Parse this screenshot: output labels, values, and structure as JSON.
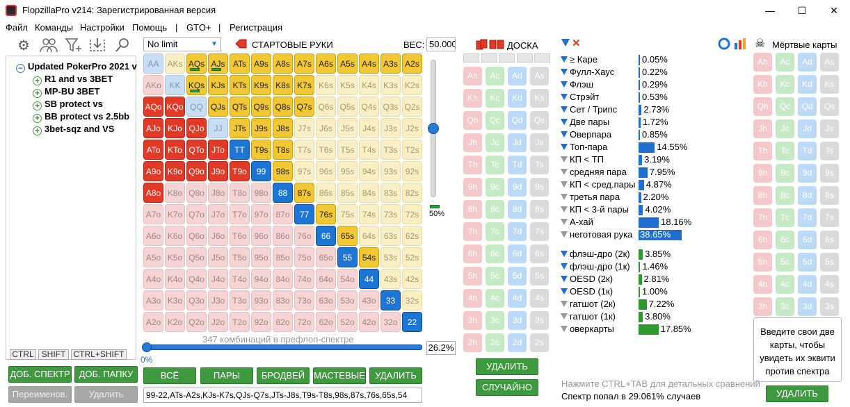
{
  "window": {
    "title": "FlopzillaPro v214: Зарегистрированная версия",
    "minimize": "—",
    "maximize": "☐",
    "close": "✕"
  },
  "menu": [
    "Файл",
    "Команды",
    "Настройки",
    "Помощь",
    "|",
    "GTO+",
    "|",
    "Регистрация"
  ],
  "tree": {
    "root": "Updated PokerPro 2021 v",
    "items": [
      "R1 and vs 3BET",
      "MP-BU 3BET",
      "SB protect vs",
      "BB protect vs 2.5bb",
      "3bet-sqz and VS"
    ]
  },
  "keys": [
    "CTRL",
    "SHIFT",
    "CTRL+SHIFT"
  ],
  "left_buttons": [
    "ДОБ. СПЕКТР",
    "ДОБ. ПАПКУ",
    "Переименов.",
    "Удалить"
  ],
  "grid_header": {
    "limit": "No limit",
    "starting_hands": "СТАРТОВЫЕ РУКИ",
    "weight_label": "ВЕС:",
    "weight_value": "50.000"
  },
  "slider": {
    "value_label": "50%",
    "value": 0.5
  },
  "combos": {
    "text": "347 комбинаций в префлоп-спектре",
    "percent": "26.2%",
    "zero": "0%"
  },
  "range_buttons": [
    "ВСЁ",
    "ПАРЫ",
    "БРОДВЕЙ",
    "МАСТЕВЫЕ",
    "УДАЛИТЬ"
  ],
  "range_text": "99-22,ATs-A2s,KJs-K7s,QJs-Q7s,JTs-J8s,T9s-T8s,98s,87s,76s,65s,54",
  "grid_rows": [
    [
      "AA",
      "AKs",
      "AQs",
      "AJs",
      "ATs",
      "A9s",
      "A8s",
      "A7s",
      "A6s",
      "A5s",
      "A4s",
      "A3s",
      "A2s"
    ],
    [
      "AKo",
      "KK",
      "KQs",
      "KJs",
      "KTs",
      "K9s",
      "K8s",
      "K7s",
      "K6s",
      "K5s",
      "K4s",
      "K3s",
      "K2s"
    ],
    [
      "AQo",
      "KQo",
      "QQ",
      "QJs",
      "QTs",
      "Q9s",
      "Q8s",
      "Q7s",
      "Q6s",
      "Q5s",
      "Q4s",
      "Q3s",
      "Q2s"
    ],
    [
      "AJo",
      "KJo",
      "QJo",
      "JJ",
      "JTs",
      "J9s",
      "J8s",
      "J7s",
      "J6s",
      "J5s",
      "J4s",
      "J3s",
      "J2s"
    ],
    [
      "ATo",
      "KTo",
      "QTo",
      "JTo",
      "TT",
      "T9s",
      "T8s",
      "T7s",
      "T6s",
      "T5s",
      "T4s",
      "T3s",
      "T2s"
    ],
    [
      "A9o",
      "K9o",
      "Q9o",
      "J9o",
      "T9o",
      "99",
      "98s",
      "97s",
      "96s",
      "95s",
      "94s",
      "93s",
      "92s"
    ],
    [
      "A8o",
      "K8o",
      "Q8o",
      "J8o",
      "T8o",
      "98o",
      "88",
      "87s",
      "86s",
      "85s",
      "84s",
      "83s",
      "82s"
    ],
    [
      "A7o",
      "K7o",
      "Q7o",
      "J7o",
      "T7o",
      "97o",
      "87o",
      "77",
      "76s",
      "75s",
      "74s",
      "73s",
      "72s"
    ],
    [
      "A6o",
      "K6o",
      "Q6o",
      "J6o",
      "T6o",
      "96o",
      "86o",
      "76o",
      "66",
      "65s",
      "64s",
      "63s",
      "62s"
    ],
    [
      "A5o",
      "K5o",
      "Q5o",
      "J5o",
      "T5o",
      "95o",
      "85o",
      "75o",
      "65o",
      "55",
      "54s",
      "53s",
      "52s"
    ],
    [
      "A4o",
      "K4o",
      "Q4o",
      "J4o",
      "T4o",
      "94o",
      "84o",
      "74o",
      "64o",
      "54o",
      "44",
      "43s",
      "42s"
    ],
    [
      "A3o",
      "K3o",
      "Q3o",
      "J3o",
      "T3o",
      "93o",
      "83o",
      "73o",
      "63o",
      "53o",
      "43o",
      "33",
      "32s"
    ],
    [
      "A2o",
      "K2o",
      "Q2o",
      "J2o",
      "T2o",
      "92o",
      "82o",
      "72o",
      "62o",
      "52o",
      "42o",
      "32o",
      "22"
    ]
  ],
  "selected_hands": [
    "AQs",
    "AJs",
    "ATs",
    "A9s",
    "A8s",
    "A7s",
    "A6s",
    "A5s",
    "A4s",
    "A3s",
    "A2s",
    "KQs",
    "KJs",
    "KTs",
    "K9s",
    "K8s",
    "K7s",
    "QJs",
    "QTs",
    "Q9s",
    "Q8s",
    "Q7s",
    "JTs",
    "J9s",
    "J8s",
    "T9s",
    "T8s",
    "98s",
    "87s",
    "76s",
    "65s",
    "54s",
    "AQo",
    "KQo",
    "AJo",
    "KJo",
    "QJo",
    "ATo",
    "KTo",
    "QTo",
    "JTo",
    "A9o",
    "K9o",
    "Q9o",
    "J9o",
    "T9o",
    "A8o",
    "TT",
    "99",
    "88",
    "77",
    "66",
    "55",
    "44",
    "33",
    "22"
  ],
  "partial_hands": [
    "AQs",
    "AJs",
    "KQs"
  ],
  "board": {
    "label": "ДОСКА",
    "delete": "УДАЛИТЬ",
    "random": "СЛУЧАЙНО",
    "ranks": [
      "A",
      "K",
      "Q",
      "J",
      "T",
      "9",
      "8",
      "7",
      "6",
      "5",
      "4",
      "3",
      "2"
    ],
    "suits": [
      "h",
      "c",
      "d",
      "s"
    ]
  },
  "dead": {
    "label": "Мёртвые карты",
    "delete": "УДАЛИТЬ",
    "hint": "Введите свои две карты, чтобы увидеть их эквити против спектра"
  },
  "stats": [
    {
      "label": "≥ Каре",
      "value": "0.05%",
      "pct": 0.05,
      "active": true,
      "group": 1
    },
    {
      "label": "Фулл-Хаус",
      "value": "0.22%",
      "pct": 0.22,
      "active": true,
      "group": 1
    },
    {
      "label": "Флэш",
      "value": "0.29%",
      "pct": 0.29,
      "active": true,
      "group": 1
    },
    {
      "label": "Стрэйт",
      "value": "0.53%",
      "pct": 0.53,
      "active": true,
      "group": 1
    },
    {
      "label": "Сет / Трипс",
      "value": "2.73%",
      "pct": 2.73,
      "active": true,
      "group": 1
    },
    {
      "label": "Две пары",
      "value": "1.72%",
      "pct": 1.72,
      "active": true,
      "group": 1
    },
    {
      "label": "Оверпара",
      "value": "0.85%",
      "pct": 0.85,
      "active": true,
      "group": 1
    },
    {
      "label": "Топ-пара",
      "value": "14.55%",
      "pct": 14.55,
      "active": true,
      "group": 1
    },
    {
      "label": "КП < ТП",
      "value": "3.19%",
      "pct": 3.19,
      "active": false,
      "group": 1
    },
    {
      "label": "средняя пара",
      "value": "7.95%",
      "pct": 7.95,
      "active": false,
      "group": 1
    },
    {
      "label": "КП < сред.пары",
      "value": "4.87%",
      "pct": 4.87,
      "active": false,
      "group": 1
    },
    {
      "label": "третья пара",
      "value": "2.20%",
      "pct": 2.2,
      "active": false,
      "group": 1
    },
    {
      "label": "КП < 3-й пары",
      "value": "4.02%",
      "pct": 4.02,
      "active": false,
      "group": 1
    },
    {
      "label": "А-хай",
      "value": "18.16%",
      "pct": 18.16,
      "active": false,
      "group": 1
    },
    {
      "label": "неготовая рука",
      "value": "38.65%",
      "pct": 38.65,
      "active": false,
      "group": 1
    },
    {
      "label": "флэш-дро (2к)",
      "value": "3.85%",
      "pct": 3.85,
      "active": true,
      "group": 2
    },
    {
      "label": "флэш-дро (1к)",
      "value": "1.46%",
      "pct": 1.46,
      "active": true,
      "group": 2
    },
    {
      "label": "OESD (2к)",
      "value": "2.81%",
      "pct": 2.81,
      "active": true,
      "group": 2
    },
    {
      "label": "OESD (1к)",
      "value": "1.00%",
      "pct": 1.0,
      "active": true,
      "group": 2
    },
    {
      "label": "гатшот (2к)",
      "value": "7.22%",
      "pct": 7.22,
      "active": false,
      "group": 2
    },
    {
      "label": "гатшот (1к)",
      "value": "3.80%",
      "pct": 3.8,
      "active": false,
      "group": 2
    },
    {
      "label": "оверкарты",
      "value": "17.85%",
      "pct": 17.85,
      "active": false,
      "group": 2
    }
  ],
  "footer": {
    "hint": "Нажмите CTRL+TAB для детальных сравнений",
    "result": "Спектр попал в 29.061% случаев"
  },
  "colors": {
    "selected_red": "#e23a26",
    "selected_yellow": "#f2c734",
    "selected_blue": "#1d76d6",
    "green_button": "#3f9a3f",
    "bar_blue": "#1e6fd0",
    "bar_green": "#2e9a2e"
  }
}
